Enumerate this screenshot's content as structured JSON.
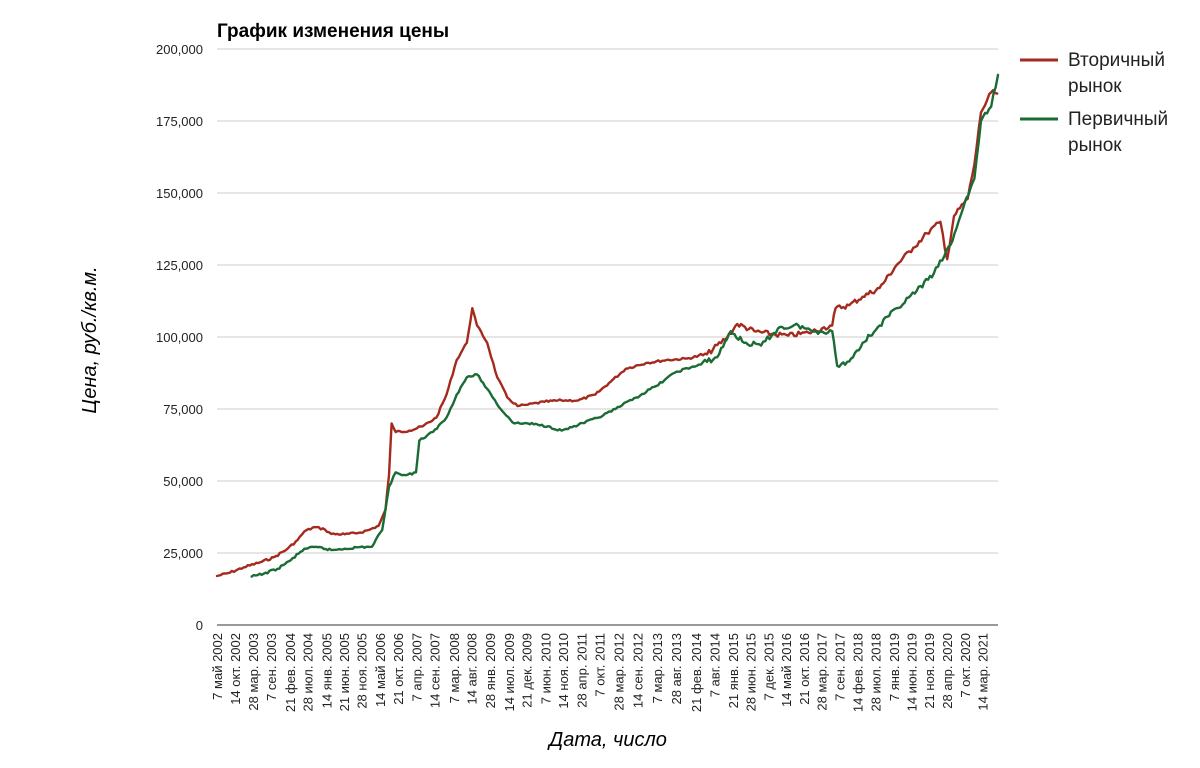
{
  "chart_data": {
    "type": "line",
    "title": "График изменения цены",
    "xlabel": "Дата, число",
    "ylabel": "Цена, руб./кв.м.",
    "ylim": [
      0,
      200000
    ],
    "yticks": [
      0,
      25000,
      50000,
      75000,
      100000,
      125000,
      150000,
      175000,
      200000
    ],
    "ytick_labels": [
      "0",
      "25,000",
      "50,000",
      "75,000",
      "100,000",
      "125,000",
      "150,000",
      "175,000",
      "200,000"
    ],
    "xlim": [
      "2002-05-07",
      "2021-08-01"
    ],
    "xticks": [
      {
        "date": "2002-05-07",
        "label": "7 май 2002"
      },
      {
        "date": "2002-10-14",
        "label": "14 окт. 2002"
      },
      {
        "date": "2003-03-28",
        "label": "28 мар. 2003"
      },
      {
        "date": "2003-09-07",
        "label": "7 сен. 2003"
      },
      {
        "date": "2004-02-21",
        "label": "21 фев. 2004"
      },
      {
        "date": "2004-07-28",
        "label": "28 июл. 2004"
      },
      {
        "date": "2005-01-14",
        "label": "14 янв. 2005"
      },
      {
        "date": "2005-06-21",
        "label": "21 июн. 2005"
      },
      {
        "date": "2005-11-28",
        "label": "28 ноя. 2005"
      },
      {
        "date": "2006-05-14",
        "label": "14 май 2006"
      },
      {
        "date": "2006-10-21",
        "label": "21 окт. 2006"
      },
      {
        "date": "2007-04-07",
        "label": "7 апр. 2007"
      },
      {
        "date": "2007-09-14",
        "label": "14 сен. 2007"
      },
      {
        "date": "2008-03-07",
        "label": "7 мар. 2008"
      },
      {
        "date": "2008-08-14",
        "label": "14 авг. 2008"
      },
      {
        "date": "2009-01-28",
        "label": "28 янв. 2009"
      },
      {
        "date": "2009-07-14",
        "label": "14 июл. 2009"
      },
      {
        "date": "2009-12-21",
        "label": "21 дек. 2009"
      },
      {
        "date": "2010-06-07",
        "label": "7 июн. 2010"
      },
      {
        "date": "2010-11-14",
        "label": "14 ноя. 2010"
      },
      {
        "date": "2011-04-28",
        "label": "28 апр. 2011"
      },
      {
        "date": "2011-10-07",
        "label": "7 окт. 2011"
      },
      {
        "date": "2012-03-28",
        "label": "28 мар. 2012"
      },
      {
        "date": "2012-09-14",
        "label": "14 сен. 2012"
      },
      {
        "date": "2013-03-07",
        "label": "7 мар. 2013"
      },
      {
        "date": "2013-08-28",
        "label": "28 авг. 2013"
      },
      {
        "date": "2014-02-21",
        "label": "21 фев. 2014"
      },
      {
        "date": "2014-08-07",
        "label": "7 авг. 2014"
      },
      {
        "date": "2015-01-21",
        "label": "21 янв. 2015"
      },
      {
        "date": "2015-06-28",
        "label": "28 июн. 2015"
      },
      {
        "date": "2015-12-07",
        "label": "7 дек. 2015"
      },
      {
        "date": "2016-05-14",
        "label": "14 май 2016"
      },
      {
        "date": "2016-10-21",
        "label": "21 окт. 2016"
      },
      {
        "date": "2017-03-28",
        "label": "28 мар. 2017"
      },
      {
        "date": "2017-09-07",
        "label": "7 сен. 2017"
      },
      {
        "date": "2018-02-14",
        "label": "14 фев. 2018"
      },
      {
        "date": "2018-07-28",
        "label": "28 июл. 2018"
      },
      {
        "date": "2019-01-07",
        "label": "7 янв. 2019"
      },
      {
        "date": "2019-06-14",
        "label": "14 июн. 2019"
      },
      {
        "date": "2019-11-21",
        "label": "21 ноя. 2019"
      },
      {
        "date": "2020-04-28",
        "label": "28 апр. 2020"
      },
      {
        "date": "2020-10-07",
        "label": "7 окт. 2020"
      },
      {
        "date": "2021-03-14",
        "label": "14 мар. 2021"
      }
    ],
    "grid": true,
    "legend_position": "top-right",
    "series": [
      {
        "name": "Вторичный рынок",
        "color": "#a52a1e",
        "points": [
          [
            "2002-05-07",
            17000
          ],
          [
            "2002-09-01",
            18200
          ],
          [
            "2003-01-01",
            20000
          ],
          [
            "2003-06-01",
            21800
          ],
          [
            "2003-10-01",
            23500
          ],
          [
            "2004-02-01",
            26500
          ],
          [
            "2004-05-01",
            29500
          ],
          [
            "2004-07-01",
            32500
          ],
          [
            "2004-10-01",
            34000
          ],
          [
            "2005-01-01",
            33200
          ],
          [
            "2005-03-01",
            31600
          ],
          [
            "2005-07-01",
            31500
          ],
          [
            "2005-11-01",
            32000
          ],
          [
            "2006-02-01",
            33000
          ],
          [
            "2006-05-01",
            34500
          ],
          [
            "2006-07-01",
            40000
          ],
          [
            "2006-08-01",
            52000
          ],
          [
            "2006-08-25",
            70000
          ],
          [
            "2006-10-01",
            67000
          ],
          [
            "2007-02-01",
            67500
          ],
          [
            "2007-06-01",
            69000
          ],
          [
            "2007-10-01",
            72000
          ],
          [
            "2008-01-01",
            80000
          ],
          [
            "2008-04-01",
            92000
          ],
          [
            "2008-07-01",
            98000
          ],
          [
            "2008-08-20",
            110000
          ],
          [
            "2008-10-01",
            104000
          ],
          [
            "2009-01-01",
            98000
          ],
          [
            "2009-04-01",
            86000
          ],
          [
            "2009-07-01",
            79000
          ],
          [
            "2009-10-01",
            76000
          ],
          [
            "2010-01-01",
            76500
          ],
          [
            "2010-06-01",
            77500
          ],
          [
            "2010-11-01",
            78000
          ],
          [
            "2011-04-01",
            78000
          ],
          [
            "2011-09-01",
            80000
          ],
          [
            "2012-01-01",
            84000
          ],
          [
            "2012-06-01",
            89000
          ],
          [
            "2012-12-01",
            91000
          ],
          [
            "2013-06-01",
            92000
          ],
          [
            "2013-12-01",
            92500
          ],
          [
            "2014-06-01",
            94000
          ],
          [
            "2014-12-01",
            100000
          ],
          [
            "2015-03-01",
            104500
          ],
          [
            "2015-08-01",
            102000
          ],
          [
            "2016-01-01",
            101000
          ],
          [
            "2016-06-01",
            100500
          ],
          [
            "2016-12-01",
            101500
          ],
          [
            "2017-04-01",
            103000
          ],
          [
            "2017-07-01",
            104000
          ],
          [
            "2017-08-01",
            110000
          ],
          [
            "2017-12-01",
            111000
          ],
          [
            "2018-04-01",
            114000
          ],
          [
            "2018-09-01",
            117000
          ],
          [
            "2019-02-01",
            125000
          ],
          [
            "2019-07-01",
            131000
          ],
          [
            "2019-11-01",
            136000
          ],
          [
            "2020-03-01",
            140000
          ],
          [
            "2020-05-01",
            127000
          ],
          [
            "2020-07-01",
            142000
          ],
          [
            "2020-11-01",
            148000
          ],
          [
            "2021-01-01",
            160000
          ],
          [
            "2021-03-01",
            178000
          ],
          [
            "2021-06-01",
            185000
          ],
          [
            "2021-07-25",
            184500
          ]
        ]
      },
      {
        "name": "Первичный рынок",
        "color": "#1b6b34",
        "points": [
          [
            "2003-03-15",
            16800
          ],
          [
            "2003-07-01",
            17800
          ],
          [
            "2003-11-01",
            19500
          ],
          [
            "2004-03-01",
            22500
          ],
          [
            "2004-07-01",
            26500
          ],
          [
            "2004-11-01",
            27000
          ],
          [
            "2005-03-01",
            26000
          ],
          [
            "2005-07-01",
            26500
          ],
          [
            "2005-11-01",
            27000
          ],
          [
            "2006-03-01",
            27200
          ],
          [
            "2006-06-01",
            33000
          ],
          [
            "2006-08-01",
            48000
          ],
          [
            "2006-10-01",
            53000
          ],
          [
            "2007-01-01",
            52000
          ],
          [
            "2007-04-01",
            53000
          ],
          [
            "2007-05-01",
            64000
          ],
          [
            "2007-09-01",
            67000
          ],
          [
            "2008-01-01",
            72000
          ],
          [
            "2008-04-01",
            80000
          ],
          [
            "2008-07-01",
            86000
          ],
          [
            "2008-10-01",
            87000
          ],
          [
            "2009-01-01",
            82000
          ],
          [
            "2009-05-01",
            75000
          ],
          [
            "2009-09-01",
            70000
          ],
          [
            "2010-01-01",
            70000
          ],
          [
            "2010-07-01",
            69000
          ],
          [
            "2010-11-01",
            67500
          ],
          [
            "2011-04-01",
            69500
          ],
          [
            "2011-10-01",
            72000
          ],
          [
            "2012-03-01",
            75000
          ],
          [
            "2012-09-01",
            79000
          ],
          [
            "2013-03-01",
            83000
          ],
          [
            "2013-09-01",
            88000
          ],
          [
            "2014-03-01",
            90000
          ],
          [
            "2014-09-01",
            93000
          ],
          [
            "2015-01-01",
            102000
          ],
          [
            "2015-05-01",
            98000
          ],
          [
            "2015-10-01",
            97000
          ],
          [
            "2016-03-01",
            103000
          ],
          [
            "2016-09-01",
            104000
          ],
          [
            "2017-01-01",
            102000
          ],
          [
            "2017-07-01",
            102000
          ],
          [
            "2017-08-15",
            90000
          ],
          [
            "2017-12-01",
            91500
          ],
          [
            "2018-04-01",
            98000
          ],
          [
            "2018-09-01",
            104000
          ],
          [
            "2019-02-01",
            110000
          ],
          [
            "2019-08-01",
            116000
          ],
          [
            "2020-01-01",
            122000
          ],
          [
            "2020-06-01",
            132000
          ],
          [
            "2020-10-01",
            146000
          ],
          [
            "2021-01-01",
            155000
          ],
          [
            "2021-03-01",
            175000
          ],
          [
            "2021-06-01",
            180000
          ],
          [
            "2021-08-01",
            191000
          ]
        ]
      }
    ]
  }
}
